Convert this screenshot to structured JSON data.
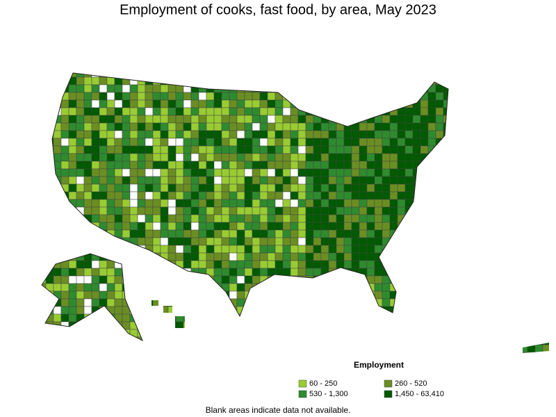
{
  "header": {
    "title": "Employment of cooks, fast food, by area, May 2023"
  },
  "legend": {
    "title": "Employment",
    "items": [
      {
        "label": "60 - 250",
        "color": "#99cc33"
      },
      {
        "label": "260 - 520",
        "color": "#6b8e23"
      },
      {
        "label": "530 - 1,300",
        "color": "#2e8b2e"
      },
      {
        "label": "1,450 - 63,410",
        "color": "#005a00"
      }
    ]
  },
  "footnote": "Blank areas indicate data not available."
}
